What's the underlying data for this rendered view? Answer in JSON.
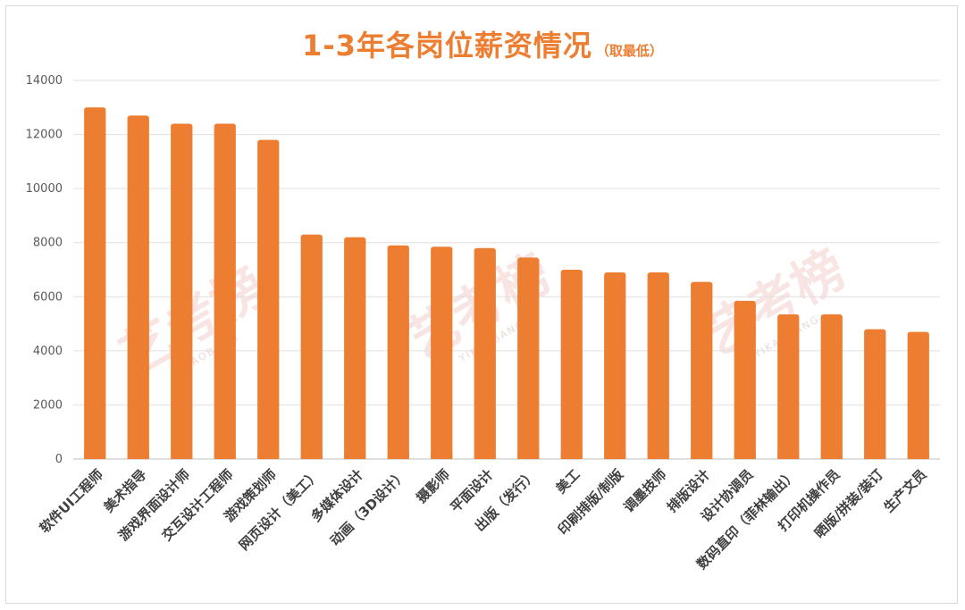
{
  "chart_data": {
    "type": "bar",
    "title": "1-3年各岗位薪资情况",
    "subtitle": "（取最低）",
    "xlabel": "",
    "ylabel": "",
    "ylim": [
      0,
      14000
    ],
    "yticks": [
      0,
      2000,
      4000,
      6000,
      8000,
      10000,
      12000,
      14000
    ],
    "grid": true,
    "legend": "none",
    "bar_color": "#ed7d31",
    "categories": [
      "软件UI工程师",
      "美术指导",
      "游戏界面设计师",
      "交互设计工程师",
      "游戏策划师",
      "网页设计（美工）",
      "多媒体设计",
      "动画（3D设计）",
      "摄影师",
      "平面设计",
      "出版（发行）",
      "美工",
      "印刷排版/制版",
      "调墨技师",
      "排版设计",
      "设计协调员",
      "数码直印（菲林输出）",
      "打印机操作员",
      "晒版/拼装/装订",
      "生产文员"
    ],
    "values": [
      13000,
      12700,
      12400,
      12400,
      11800,
      8300,
      8200,
      7900,
      7850,
      7800,
      7450,
      7000,
      6900,
      6900,
      6550,
      5850,
      5350,
      5350,
      4800,
      4700
    ]
  },
  "watermark": {
    "brand": "艺考榜",
    "sub": "YIKAOBANG"
  }
}
